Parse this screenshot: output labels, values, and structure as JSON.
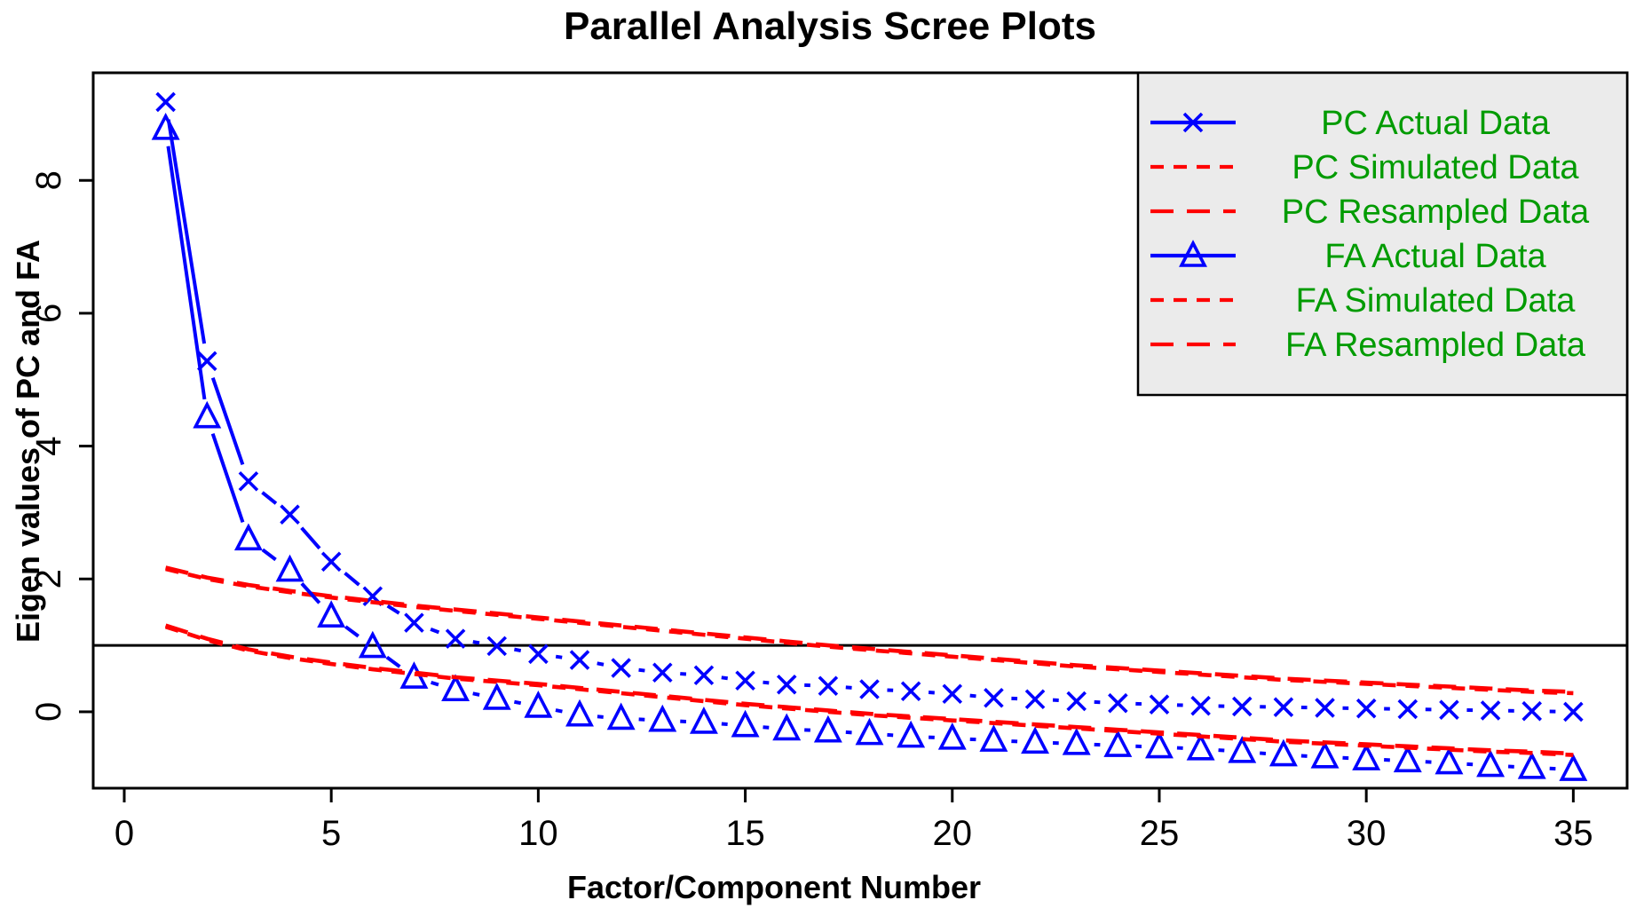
{
  "title": "Parallel Analysis Scree Plots",
  "colors": {
    "actual_line": "#0000ff",
    "simulated_line": "#ff0000",
    "legend_text": "#009b00",
    "legend_background": "#ebebeb",
    "axis": "#000000",
    "background": "#ffffff"
  },
  "chart_data": {
    "type": "line",
    "title": "Parallel Analysis Scree Plots",
    "xlabel": "Factor/Component Number",
    "ylabel": "Eigen values of PC and FA",
    "x": [
      1,
      2,
      3,
      4,
      5,
      6,
      7,
      8,
      9,
      10,
      11,
      12,
      13,
      14,
      15,
      16,
      17,
      18,
      19,
      20,
      21,
      22,
      23,
      24,
      25,
      26,
      27,
      28,
      29,
      30,
      31,
      32,
      33,
      34,
      35
    ],
    "xticks": [
      0,
      5,
      10,
      15,
      20,
      25,
      30,
      35
    ],
    "yticks": [
      0,
      2,
      4,
      6,
      8
    ],
    "xlim": [
      -0.75,
      36.3
    ],
    "ylim": [
      -1.15,
      9.62
    ],
    "hline": 1,
    "grid": false,
    "legend_position": "top-right",
    "series": [
      {
        "name": "PC  Actual Data",
        "color": "#0000ff",
        "marker": "x",
        "line": "solid-b",
        "values": [
          9.18,
          5.28,
          3.47,
          2.97,
          2.26,
          1.74,
          1.34,
          1.1,
          0.99,
          0.87,
          0.78,
          0.66,
          0.59,
          0.55,
          0.47,
          0.41,
          0.39,
          0.34,
          0.31,
          0.27,
          0.21,
          0.19,
          0.16,
          0.13,
          0.11,
          0.09,
          0.08,
          0.07,
          0.06,
          0.05,
          0.04,
          0.03,
          0.02,
          0.01,
          0.0
        ]
      },
      {
        "name": "PC  Simulated Data",
        "color": "#ff0000",
        "marker": null,
        "line": "dashed",
        "values": [
          2.15,
          2.0,
          1.89,
          1.8,
          1.72,
          1.65,
          1.58,
          1.52,
          1.46,
          1.4,
          1.34,
          1.28,
          1.22,
          1.16,
          1.1,
          1.04,
          0.98,
          0.93,
          0.88,
          0.83,
          0.78,
          0.73,
          0.68,
          0.64,
          0.6,
          0.56,
          0.52,
          0.48,
          0.45,
          0.42,
          0.39,
          0.36,
          0.33,
          0.3,
          0.28
        ]
      },
      {
        "name": "PC  Resampled Data",
        "color": "#ff0000",
        "marker": null,
        "line": "longdash",
        "values": [
          2.17,
          2.02,
          1.91,
          1.82,
          1.74,
          1.67,
          1.6,
          1.54,
          1.48,
          1.42,
          1.36,
          1.3,
          1.24,
          1.18,
          1.12,
          1.06,
          1.0,
          0.95,
          0.9,
          0.85,
          0.8,
          0.75,
          0.7,
          0.66,
          0.62,
          0.58,
          0.54,
          0.5,
          0.47,
          0.44,
          0.41,
          0.38,
          0.35,
          0.32,
          0.3
        ]
      },
      {
        "name": "FA  Actual Data",
        "color": "#0000ff",
        "marker": "triangle",
        "line": "solid-b",
        "values": [
          8.78,
          4.44,
          2.6,
          2.13,
          1.44,
          0.98,
          0.52,
          0.33,
          0.2,
          0.08,
          -0.05,
          -0.1,
          -0.13,
          -0.16,
          -0.21,
          -0.26,
          -0.29,
          -0.33,
          -0.37,
          -0.4,
          -0.43,
          -0.46,
          -0.48,
          -0.51,
          -0.53,
          -0.56,
          -0.6,
          -0.65,
          -0.68,
          -0.71,
          -0.74,
          -0.77,
          -0.81,
          -0.84,
          -0.87
        ]
      },
      {
        "name": "FA  Simulated Data",
        "color": "#ff0000",
        "marker": null,
        "line": "dashed",
        "values": [
          1.28,
          1.08,
          0.92,
          0.81,
          0.72,
          0.64,
          0.57,
          0.5,
          0.45,
          0.4,
          0.34,
          0.28,
          0.22,
          0.16,
          0.1,
          0.05,
          0.0,
          -0.05,
          -0.09,
          -0.13,
          -0.17,
          -0.21,
          -0.25,
          -0.29,
          -0.33,
          -0.37,
          -0.41,
          -0.45,
          -0.48,
          -0.51,
          -0.54,
          -0.57,
          -0.6,
          -0.62,
          -0.65
        ]
      },
      {
        "name": "FA  Resampled Data",
        "color": "#ff0000",
        "marker": null,
        "line": "longdash",
        "values": [
          1.3,
          1.1,
          0.94,
          0.83,
          0.74,
          0.66,
          0.59,
          0.52,
          0.47,
          0.42,
          0.36,
          0.3,
          0.24,
          0.18,
          0.12,
          0.07,
          0.02,
          -0.03,
          -0.07,
          -0.11,
          -0.15,
          -0.19,
          -0.23,
          -0.27,
          -0.31,
          -0.35,
          -0.39,
          -0.43,
          -0.46,
          -0.49,
          -0.52,
          -0.55,
          -0.58,
          -0.6,
          -0.63
        ]
      }
    ]
  }
}
